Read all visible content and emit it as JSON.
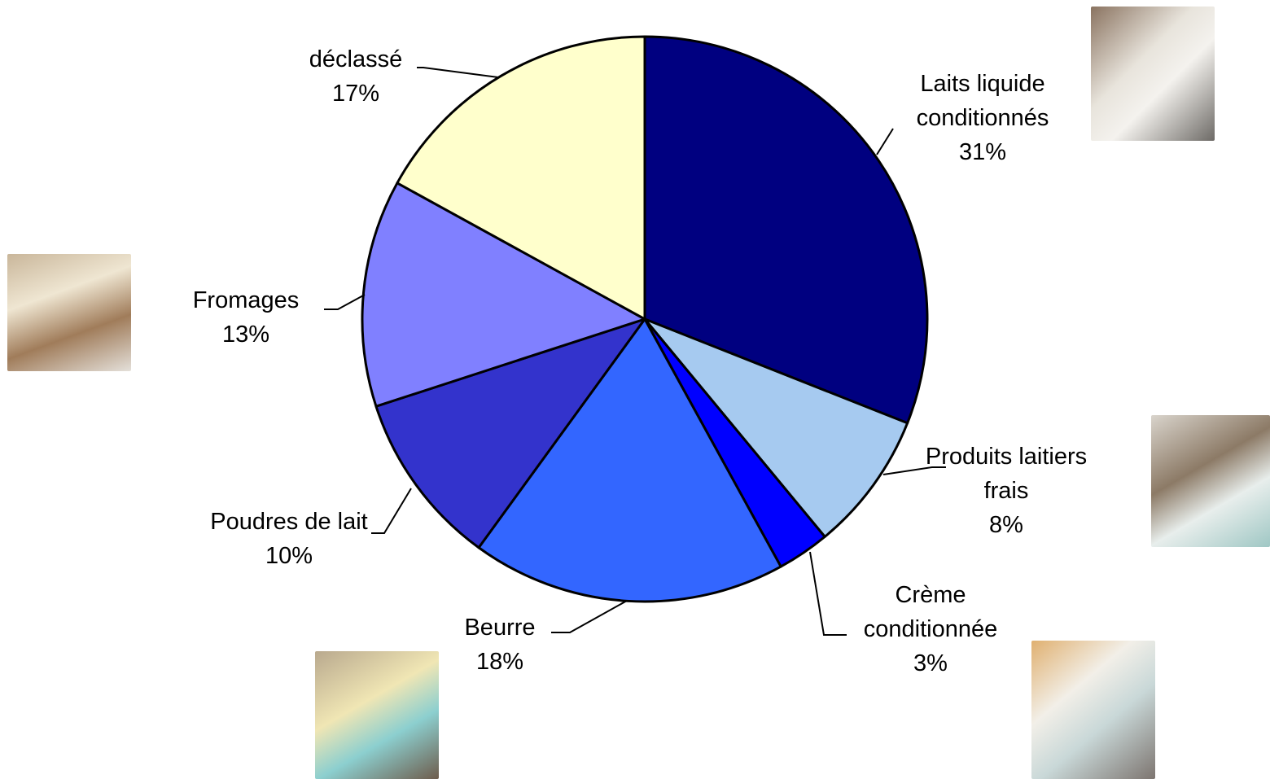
{
  "chart_data": {
    "type": "pie",
    "categories": [
      "Laits liquide conditionnés",
      "Produits laitiers frais",
      "Crème conditionnée",
      "Beurre",
      "Poudres de lait",
      "Fromages",
      "déclassé"
    ],
    "values": [
      31,
      8,
      3,
      18,
      10,
      13,
      17
    ],
    "value_labels": [
      "31%",
      "8%",
      "3%",
      "18%",
      "10%",
      "13%",
      "17%"
    ],
    "colors": [
      "#000080",
      "#a6caf0",
      "#0000ff",
      "#3366ff",
      "#3333cc",
      "#8080ff",
      "#ffffcc"
    ]
  }
}
